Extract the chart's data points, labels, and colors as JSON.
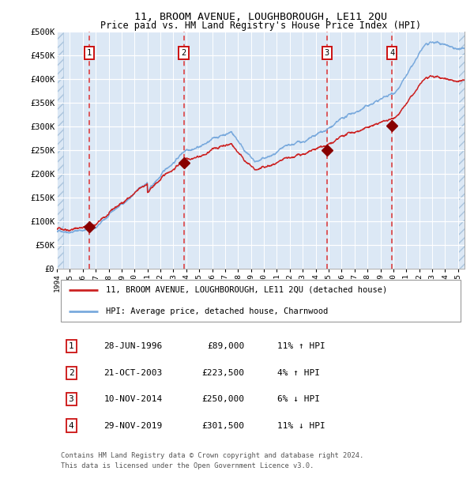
{
  "title": "11, BROOM AVENUE, LOUGHBOROUGH, LE11 2QU",
  "subtitle": "Price paid vs. HM Land Registry's House Price Index (HPI)",
  "legend_line1": "11, BROOM AVENUE, LOUGHBOROUGH, LE11 2QU (detached house)",
  "legend_line2": "HPI: Average price, detached house, Charnwood",
  "footer1": "Contains HM Land Registry data © Crown copyright and database right 2024.",
  "footer2": "This data is licensed under the Open Government Licence v3.0.",
  "hpi_color": "#7aaadd",
  "price_color": "#cc2222",
  "background_color": "#dce8f5",
  "grid_color": "#ffffff",
  "dashed_color": "#dd3333",
  "sale_marker_color": "#880000",
  "ylim": [
    0,
    500000
  ],
  "ytick_values": [
    0,
    50000,
    100000,
    150000,
    200000,
    250000,
    300000,
    350000,
    400000,
    450000,
    500000
  ],
  "ytick_labels": [
    "£0",
    "£50K",
    "£100K",
    "£150K",
    "£200K",
    "£250K",
    "£300K",
    "£350K",
    "£400K",
    "£450K",
    "£500K"
  ],
  "xmin": 1994.0,
  "xmax": 2025.5,
  "sales": [
    {
      "num": 1,
      "year": 1996.49,
      "price": 89000,
      "date": "28-JUN-1996",
      "price_str": "£89,000",
      "hpi_rel": "11% ↑ HPI"
    },
    {
      "num": 2,
      "year": 2003.8,
      "price": 223500,
      "date": "21-OCT-2003",
      "price_str": "£223,500",
      "hpi_rel": "4% ↑ HPI"
    },
    {
      "num": 3,
      "year": 2014.86,
      "price": 250000,
      "date": "10-NOV-2014",
      "price_str": "£250,000",
      "hpi_rel": "6% ↓ HPI"
    },
    {
      "num": 4,
      "year": 2019.91,
      "price": 301500,
      "date": "29-NOV-2019",
      "price_str": "£301,500",
      "hpi_rel": "11% ↓ HPI"
    }
  ],
  "xtick_years": [
    1994,
    1995,
    1996,
    1997,
    1998,
    1999,
    2000,
    2001,
    2002,
    2003,
    2004,
    2005,
    2006,
    2007,
    2008,
    2009,
    2010,
    2011,
    2012,
    2013,
    2014,
    2015,
    2016,
    2017,
    2018,
    2019,
    2020,
    2021,
    2022,
    2023,
    2024,
    2025
  ]
}
